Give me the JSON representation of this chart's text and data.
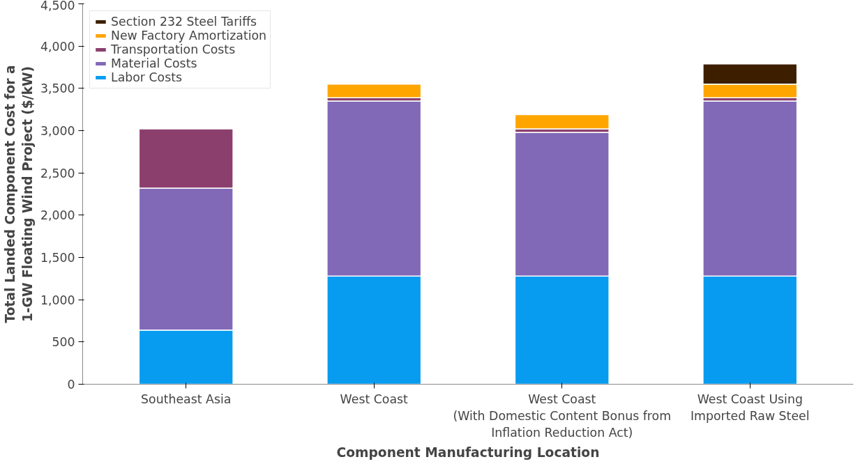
{
  "chart_data": {
    "type": "bar",
    "stacked": true,
    "xlabel": "Component Manufacturing Location",
    "ylabel": "Total Landed Component Cost for a\n1-GW Floating Wind Project ($/kW)",
    "categories": [
      "Southeast Asia",
      "West Coast",
      "West Coast\n(With Domestic Content Bonus from\nInflation Reduction Act)",
      "West Coast Using\nImported Raw Steel"
    ],
    "series": [
      {
        "name": "Labor Costs",
        "color": "#089cf0",
        "values": [
          640,
          1280,
          1280,
          1280
        ]
      },
      {
        "name": "Material Costs",
        "color": "#8169b8",
        "values": [
          1680,
          2070,
          1700,
          2070
        ]
      },
      {
        "name": "Transportation Costs",
        "color": "#8b3f6c",
        "values": [
          700,
          40,
          40,
          40
        ]
      },
      {
        "name": "New Factory Amortization",
        "color": "#ffa500",
        "values": [
          null,
          160,
          170,
          160
        ]
      },
      {
        "name": "Section 232 Steel Tariffs",
        "color": "#3d1f00",
        "values": [
          null,
          null,
          null,
          240
        ]
      }
    ],
    "ylim": [
      0,
      4500
    ],
    "yticks": [
      {
        "value": 0,
        "label": "0"
      },
      {
        "value": 500,
        "label": "500"
      },
      {
        "value": 1000,
        "label": "1,000"
      },
      {
        "value": 1500,
        "label": "1,500"
      },
      {
        "value": 2000,
        "label": "2,000"
      },
      {
        "value": 2500,
        "label": "2,500"
      },
      {
        "value": 3000,
        "label": "3,000"
      },
      {
        "value": 3500,
        "label": "3,500"
      },
      {
        "value": 4000,
        "label": "4,000"
      },
      {
        "value": 4500,
        "label": "4,500"
      }
    ],
    "legend": "top left",
    "grid": false
  }
}
